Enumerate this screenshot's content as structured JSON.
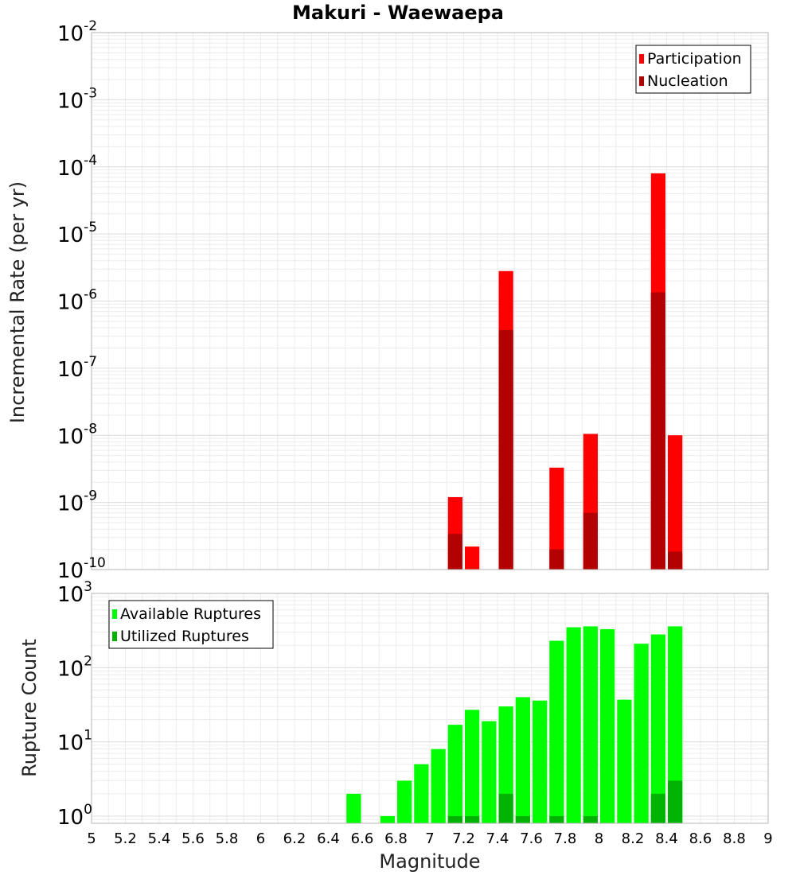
{
  "chart_data": {
    "title": "Makuri - Waewaepa",
    "xlabel": "Magnitude",
    "x_ticks": [
      "5",
      "5.2",
      "5.4",
      "5.6",
      "5.8",
      "6",
      "6.2",
      "6.4",
      "6.6",
      "6.8",
      "7",
      "7.2",
      "7.4",
      "7.6",
      "7.8",
      "8",
      "8.2",
      "8.4",
      "8.6",
      "8.8",
      "9"
    ],
    "xlim": [
      5,
      9
    ],
    "bin_width": 0.1,
    "panels": [
      {
        "type": "bar",
        "ylabel": "Incremental Rate (per yr)",
        "yscale": "log",
        "ylim": [
          1e-10,
          0.01
        ],
        "y_ticks": [
          {
            "base": "10",
            "exp": "-10"
          },
          {
            "base": "10",
            "exp": "-9"
          },
          {
            "base": "10",
            "exp": "-8"
          },
          {
            "base": "10",
            "exp": "-7"
          },
          {
            "base": "10",
            "exp": "-6"
          },
          {
            "base": "10",
            "exp": "-5"
          },
          {
            "base": "10",
            "exp": "-4"
          },
          {
            "base": "10",
            "exp": "-3"
          },
          {
            "base": "10",
            "exp": "-2"
          }
        ],
        "grid": true,
        "legend_position": "top-right",
        "series": [
          {
            "name": "Participation",
            "color": "#ff0000",
            "points": [
              {
                "x": 7.15,
                "y": 1.2e-09
              },
              {
                "x": 7.25,
                "y": 2.2e-10
              },
              {
                "x": 7.45,
                "y": 2.8e-06
              },
              {
                "x": 7.75,
                "y": 3.3e-09
              },
              {
                "x": 7.95,
                "y": 1.05e-08
              },
              {
                "x": 8.35,
                "y": 8e-05
              },
              {
                "x": 8.45,
                "y": 1e-08
              }
            ]
          },
          {
            "name": "Nucleation",
            "color": "#b30000",
            "points": [
              {
                "x": 7.15,
                "y": 3.4e-10
              },
              {
                "x": 7.45,
                "y": 3.7e-07
              },
              {
                "x": 7.75,
                "y": 2e-10
              },
              {
                "x": 7.95,
                "y": 7e-10
              },
              {
                "x": 8.35,
                "y": 1.35e-06
              },
              {
                "x": 8.45,
                "y": 1.85e-10
              }
            ]
          }
        ]
      },
      {
        "type": "bar",
        "ylabel": "Rupture Count",
        "yscale": "log",
        "ylim": [
          0.8,
          1000
        ],
        "y_ticks": [
          {
            "base": "10",
            "exp": "0"
          },
          {
            "base": "10",
            "exp": "1"
          },
          {
            "base": "10",
            "exp": "2"
          },
          {
            "base": "10",
            "exp": "3"
          }
        ],
        "grid": true,
        "legend_position": "top-left",
        "series": [
          {
            "name": "Available Ruptures",
            "color": "#00ff00",
            "points": [
              {
                "x": 6.55,
                "y": 2
              },
              {
                "x": 6.75,
                "y": 1
              },
              {
                "x": 6.85,
                "y": 3
              },
              {
                "x": 6.95,
                "y": 5
              },
              {
                "x": 7.05,
                "y": 8
              },
              {
                "x": 7.15,
                "y": 17
              },
              {
                "x": 7.25,
                "y": 27
              },
              {
                "x": 7.35,
                "y": 19
              },
              {
                "x": 7.45,
                "y": 30
              },
              {
                "x": 7.55,
                "y": 40
              },
              {
                "x": 7.65,
                "y": 36
              },
              {
                "x": 7.75,
                "y": 230
              },
              {
                "x": 7.85,
                "y": 350
              },
              {
                "x": 7.95,
                "y": 360
              },
              {
                "x": 8.05,
                "y": 330
              },
              {
                "x": 8.15,
                "y": 37
              },
              {
                "x": 8.25,
                "y": 210
              },
              {
                "x": 8.35,
                "y": 280
              },
              {
                "x": 8.45,
                "y": 360
              }
            ]
          },
          {
            "name": "Utilized Ruptures",
            "color": "#00b300",
            "points": [
              {
                "x": 7.15,
                "y": 1
              },
              {
                "x": 7.25,
                "y": 1
              },
              {
                "x": 7.45,
                "y": 2
              },
              {
                "x": 7.55,
                "y": 1
              },
              {
                "x": 7.75,
                "y": 1
              },
              {
                "x": 7.95,
                "y": 1
              },
              {
                "x": 8.35,
                "y": 2
              },
              {
                "x": 8.45,
                "y": 3
              }
            ]
          }
        ]
      }
    ]
  }
}
